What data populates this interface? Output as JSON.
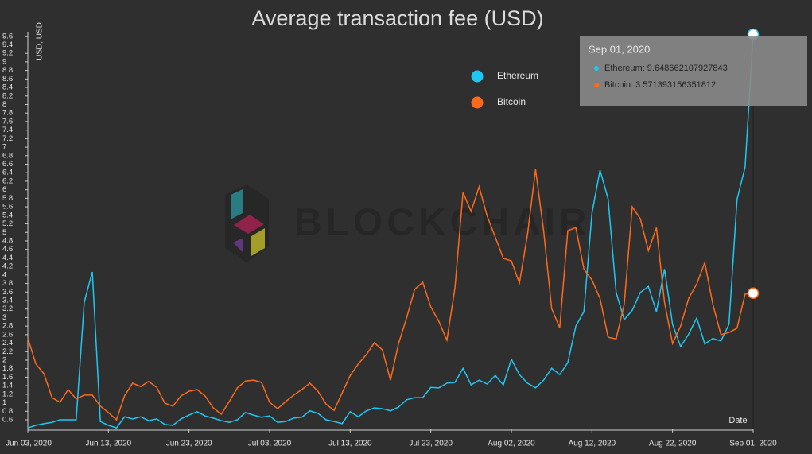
{
  "chart_data": {
    "type": "line",
    "title": "Average transaction fee (USD)",
    "y_label": "USD, USD",
    "x_label": "Date",
    "watermark": "BLOCKCHAIR",
    "x": [
      "2020-06-03",
      "2020-06-04",
      "2020-06-05",
      "2020-06-06",
      "2020-06-07",
      "2020-06-08",
      "2020-06-09",
      "2020-06-10",
      "2020-06-11",
      "2020-06-12",
      "2020-06-13",
      "2020-06-14",
      "2020-06-15",
      "2020-06-16",
      "2020-06-17",
      "2020-06-18",
      "2020-06-19",
      "2020-06-20",
      "2020-06-21",
      "2020-06-22",
      "2020-06-23",
      "2020-06-24",
      "2020-06-25",
      "2020-06-26",
      "2020-06-27",
      "2020-06-28",
      "2020-06-29",
      "2020-06-30",
      "2020-07-01",
      "2020-07-02",
      "2020-07-03",
      "2020-07-04",
      "2020-07-05",
      "2020-07-06",
      "2020-07-07",
      "2020-07-08",
      "2020-07-09",
      "2020-07-10",
      "2020-07-11",
      "2020-07-12",
      "2020-07-13",
      "2020-07-14",
      "2020-07-15",
      "2020-07-16",
      "2020-07-17",
      "2020-07-18",
      "2020-07-19",
      "2020-07-20",
      "2020-07-21",
      "2020-07-22",
      "2020-07-23",
      "2020-07-24",
      "2020-07-25",
      "2020-07-26",
      "2020-07-27",
      "2020-07-28",
      "2020-07-29",
      "2020-07-30",
      "2020-07-31",
      "2020-08-01",
      "2020-08-02",
      "2020-08-03",
      "2020-08-04",
      "2020-08-05",
      "2020-08-06",
      "2020-08-07",
      "2020-08-08",
      "2020-08-09",
      "2020-08-10",
      "2020-08-11",
      "2020-08-12",
      "2020-08-13",
      "2020-08-14",
      "2020-08-15",
      "2020-08-16",
      "2020-08-17",
      "2020-08-18",
      "2020-08-19",
      "2020-08-20",
      "2020-08-21",
      "2020-08-22",
      "2020-08-23",
      "2020-08-24",
      "2020-08-25",
      "2020-08-26",
      "2020-08-27",
      "2020-08-28",
      "2020-08-29",
      "2020-08-30",
      "2020-08-31",
      "2020-09-01"
    ],
    "series": [
      {
        "name": "Ethereum",
        "color": "#1ec8f5",
        "values": [
          0.41,
          0.47,
          0.51,
          0.54,
          0.6,
          0.6,
          0.6,
          3.36,
          4.07,
          0.56,
          0.47,
          0.41,
          0.67,
          0.62,
          0.67,
          0.58,
          0.62,
          0.49,
          0.47,
          0.62,
          0.71,
          0.79,
          0.69,
          0.64,
          0.58,
          0.54,
          0.6,
          0.77,
          0.71,
          0.66,
          0.69,
          0.54,
          0.56,
          0.64,
          0.66,
          0.81,
          0.75,
          0.6,
          0.56,
          0.51,
          0.79,
          0.67,
          0.81,
          0.88,
          0.86,
          0.81,
          0.9,
          1.07,
          1.12,
          1.12,
          1.36,
          1.35,
          1.46,
          1.48,
          1.81,
          1.42,
          1.53,
          1.44,
          1.64,
          1.42,
          2.02,
          1.66,
          1.46,
          1.35,
          1.53,
          1.81,
          1.66,
          1.94,
          2.8,
          3.14,
          5.45,
          6.46,
          5.79,
          3.59,
          2.95,
          3.17,
          3.59,
          3.73,
          3.14,
          4.14,
          2.84,
          2.32,
          2.61,
          2.99,
          2.38,
          2.51,
          2.45,
          2.84,
          5.77,
          6.53,
          9.648662107927843
        ]
      },
      {
        "name": "Bitcoin",
        "color": "#ff6a1a",
        "values": [
          2.52,
          1.91,
          1.68,
          1.12,
          1.01,
          1.31,
          1.09,
          1.18,
          1.18,
          0.92,
          0.77,
          0.6,
          1.16,
          1.46,
          1.38,
          1.5,
          1.36,
          0.99,
          0.92,
          1.16,
          1.27,
          1.31,
          1.16,
          0.88,
          0.73,
          1.03,
          1.35,
          1.51,
          1.53,
          1.48,
          1.01,
          0.86,
          1.03,
          1.18,
          1.31,
          1.46,
          1.27,
          0.97,
          0.82,
          1.23,
          1.64,
          1.91,
          2.13,
          2.41,
          2.24,
          1.53,
          2.39,
          2.99,
          3.66,
          3.83,
          3.25,
          2.91,
          2.47,
          3.7,
          5.94,
          5.49,
          6.07,
          5.38,
          4.89,
          4.39,
          4.33,
          3.81,
          4.95,
          6.48,
          5.04,
          3.21,
          2.76,
          5.04,
          5.11,
          4.14,
          3.88,
          3.45,
          2.54,
          2.5,
          3.31,
          5.6,
          5.32,
          4.57,
          5.11,
          3.36,
          2.39,
          2.8,
          3.45,
          3.79,
          4.29,
          3.31,
          2.6,
          2.65,
          2.75,
          3.55,
          3.571393156351812
        ]
      }
    ],
    "xlim": [
      "2020-06-03",
      "2020-09-01"
    ],
    "xticks": [
      {
        "value": "2020-06-03",
        "label": "Jun 03, 2020"
      },
      {
        "value": "2020-06-13",
        "label": "Jun 13, 2020"
      },
      {
        "value": "2020-06-23",
        "label": "Jun 23, 2020"
      },
      {
        "value": "2020-07-03",
        "label": "Jul 03, 2020"
      },
      {
        "value": "2020-07-13",
        "label": "Jul 13, 2020"
      },
      {
        "value": "2020-07-23",
        "label": "Jul 23, 2020"
      },
      {
        "value": "2020-08-02",
        "label": "Aug 02, 2020"
      },
      {
        "value": "2020-08-12",
        "label": "Aug 12, 2020"
      },
      {
        "value": "2020-08-22",
        "label": "Aug 22, 2020"
      },
      {
        "value": "2020-09-01",
        "label": "Sep 01, 2020"
      }
    ],
    "ylim": [
      0.38,
      9.7
    ],
    "yticks": [
      0.6,
      0.8,
      1,
      1.2,
      1.4,
      1.6,
      1.8,
      2,
      2.2,
      2.4,
      2.6,
      2.8,
      3,
      3.2,
      3.4,
      3.6,
      3.8,
      4,
      4.2,
      4.4,
      4.6,
      4.8,
      5,
      5.2,
      5.4,
      5.6,
      5.8,
      6,
      6.2,
      6.4,
      6.6,
      6.8,
      7,
      7.2,
      7.4,
      7.6,
      7.8,
      8,
      8.2,
      8.4,
      8.6,
      8.8,
      9,
      9.2,
      9.4,
      9.6
    ],
    "grid": false,
    "legend": "top-right",
    "tooltip": {
      "title": "Sep 01, 2020",
      "lines": [
        "Ethereum: 9.648662107927843",
        "Bitcoin: 3.571393156351812"
      ]
    }
  }
}
